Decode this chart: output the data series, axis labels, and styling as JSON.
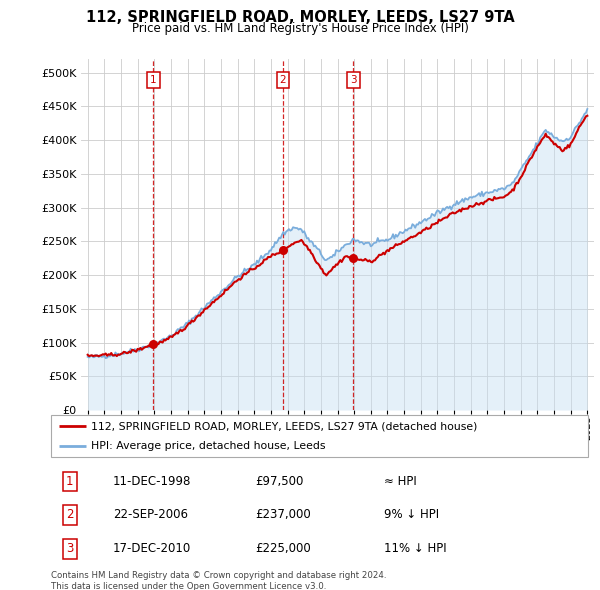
{
  "title": "112, SPRINGFIELD ROAD, MORLEY, LEEDS, LS27 9TA",
  "subtitle": "Price paid vs. HM Land Registry's House Price Index (HPI)",
  "legend_line1": "112, SPRINGFIELD ROAD, MORLEY, LEEDS, LS27 9TA (detached house)",
  "legend_line2": "HPI: Average price, detached house, Leeds",
  "sale_color": "#cc0000",
  "hpi_color": "#7aaddc",
  "hpi_fill_color": "#c5dff2",
  "annotation_box_color": "#cc0000",
  "grid_color": "#cccccc",
  "sales": [
    {
      "label": "1",
      "date": "11-DEC-1998",
      "price": 97500,
      "x": 1998.94,
      "note": "≈ HPI"
    },
    {
      "label": "2",
      "date": "22-SEP-2006",
      "price": 237000,
      "x": 2006.72,
      "note": "9% ↓ HPI"
    },
    {
      "label": "3",
      "date": "17-DEC-2010",
      "price": 225000,
      "x": 2010.96,
      "note": "11% ↓ HPI"
    }
  ],
  "footer": "Contains HM Land Registry data © Crown copyright and database right 2024.\nThis data is licensed under the Open Government Licence v3.0.",
  "ylim": [
    0,
    520000
  ],
  "xlim_start": 1994.6,
  "xlim_end": 2025.4,
  "hpi_anchors": [
    [
      1995.0,
      78000
    ],
    [
      1996.0,
      80000
    ],
    [
      1997.0,
      84000
    ],
    [
      1998.0,
      90000
    ],
    [
      1998.94,
      97500
    ],
    [
      1999.5,
      103000
    ],
    [
      2000.0,
      110000
    ],
    [
      2001.0,
      128000
    ],
    [
      2002.0,
      152000
    ],
    [
      2003.0,
      175000
    ],
    [
      2004.0,
      198000
    ],
    [
      2005.0,
      215000
    ],
    [
      2006.0,
      238000
    ],
    [
      2006.72,
      261000
    ],
    [
      2007.3,
      270000
    ],
    [
      2007.8,
      268000
    ],
    [
      2008.3,
      252000
    ],
    [
      2008.8,
      238000
    ],
    [
      2009.3,
      222000
    ],
    [
      2009.8,
      228000
    ],
    [
      2010.0,
      235000
    ],
    [
      2010.96,
      253000
    ],
    [
      2011.5,
      248000
    ],
    [
      2012.0,
      245000
    ],
    [
      2013.0,
      252000
    ],
    [
      2014.0,
      265000
    ],
    [
      2015.0,
      278000
    ],
    [
      2016.0,
      292000
    ],
    [
      2017.0,
      305000
    ],
    [
      2018.0,
      315000
    ],
    [
      2019.0,
      322000
    ],
    [
      2020.0,
      328000
    ],
    [
      2020.5,
      335000
    ],
    [
      2021.0,
      355000
    ],
    [
      2021.5,
      375000
    ],
    [
      2022.0,
      395000
    ],
    [
      2022.5,
      415000
    ],
    [
      2023.0,
      405000
    ],
    [
      2023.5,
      398000
    ],
    [
      2024.0,
      405000
    ],
    [
      2024.5,
      425000
    ],
    [
      2025.0,
      445000
    ]
  ],
  "prop_anchors": [
    [
      1995.0,
      80000
    ],
    [
      1996.0,
      81000
    ],
    [
      1997.0,
      83000
    ],
    [
      1998.0,
      89000
    ],
    [
      1998.94,
      97500
    ],
    [
      1999.5,
      101000
    ],
    [
      2000.0,
      107000
    ],
    [
      2001.0,
      125000
    ],
    [
      2002.0,
      148000
    ],
    [
      2003.0,
      170000
    ],
    [
      2004.0,
      193000
    ],
    [
      2005.0,
      210000
    ],
    [
      2006.0,
      228000
    ],
    [
      2006.5,
      234000
    ],
    [
      2006.72,
      237000
    ],
    [
      2007.2,
      245000
    ],
    [
      2007.8,
      252000
    ],
    [
      2008.3,
      238000
    ],
    [
      2008.8,
      218000
    ],
    [
      2009.3,
      200000
    ],
    [
      2009.8,
      212000
    ],
    [
      2010.5,
      228000
    ],
    [
      2010.96,
      225000
    ],
    [
      2011.5,
      222000
    ],
    [
      2012.0,
      220000
    ],
    [
      2013.0,
      236000
    ],
    [
      2014.0,
      250000
    ],
    [
      2015.0,
      263000
    ],
    [
      2016.0,
      278000
    ],
    [
      2017.0,
      292000
    ],
    [
      2018.0,
      302000
    ],
    [
      2019.0,
      310000
    ],
    [
      2020.0,
      316000
    ],
    [
      2020.5,
      325000
    ],
    [
      2021.0,
      345000
    ],
    [
      2021.5,
      368000
    ],
    [
      2022.0,
      390000
    ],
    [
      2022.5,
      408000
    ],
    [
      2023.0,
      395000
    ],
    [
      2023.5,
      385000
    ],
    [
      2024.0,
      393000
    ],
    [
      2024.5,
      418000
    ],
    [
      2025.0,
      438000
    ]
  ]
}
